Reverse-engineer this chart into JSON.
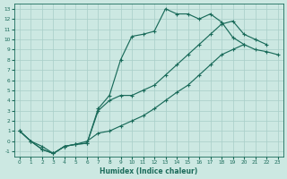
{
  "xlabel": "Humidex (Indice chaleur)",
  "bg_color": "#cce8e2",
  "line_color": "#1a6b5a",
  "grid_color": "#a8cec8",
  "xlim": [
    -0.5,
    23.5
  ],
  "ylim": [
    -1.5,
    13.5
  ],
  "s1x": [
    0,
    1,
    2,
    3,
    4,
    5,
    6,
    7,
    8,
    9,
    10,
    11,
    12,
    13,
    14,
    15,
    16,
    17,
    18,
    19,
    20,
    21
  ],
  "s1y": [
    1,
    0.0,
    -0.5,
    -1.2,
    -0.5,
    -0.3,
    -0.2,
    3.2,
    4.5,
    8.0,
    10.3,
    10.5,
    10.8,
    13.0,
    12.5,
    12.5,
    12.0,
    12.5,
    11.7,
    10.2,
    9.5,
    null
  ],
  "s2x": [
    0,
    1,
    2,
    3,
    4,
    5,
    6,
    7,
    8,
    9,
    10,
    11,
    12,
    13,
    14,
    15,
    16,
    17,
    18,
    19,
    20,
    21,
    22
  ],
  "s2y": [
    1,
    0.0,
    -0.8,
    -1.2,
    -0.5,
    -0.3,
    -0.2,
    3.0,
    4.0,
    4.5,
    4.5,
    5.0,
    5.5,
    6.5,
    7.5,
    8.5,
    9.5,
    10.5,
    11.5,
    11.8,
    10.5,
    10.0,
    9.5
  ],
  "s3x": [
    0,
    1,
    2,
    3,
    4,
    5,
    6,
    7,
    8,
    9,
    10,
    11,
    12,
    13,
    14,
    15,
    16,
    17,
    18,
    19,
    20,
    21,
    22,
    23
  ],
  "s3y": [
    1,
    0.0,
    -0.8,
    -1.2,
    -0.5,
    -0.3,
    -0.0,
    0.8,
    1.0,
    1.5,
    2.0,
    2.5,
    3.2,
    4.0,
    4.8,
    5.5,
    6.5,
    7.5,
    8.5,
    9.0,
    9.5,
    9.0,
    8.8,
    8.5
  ]
}
